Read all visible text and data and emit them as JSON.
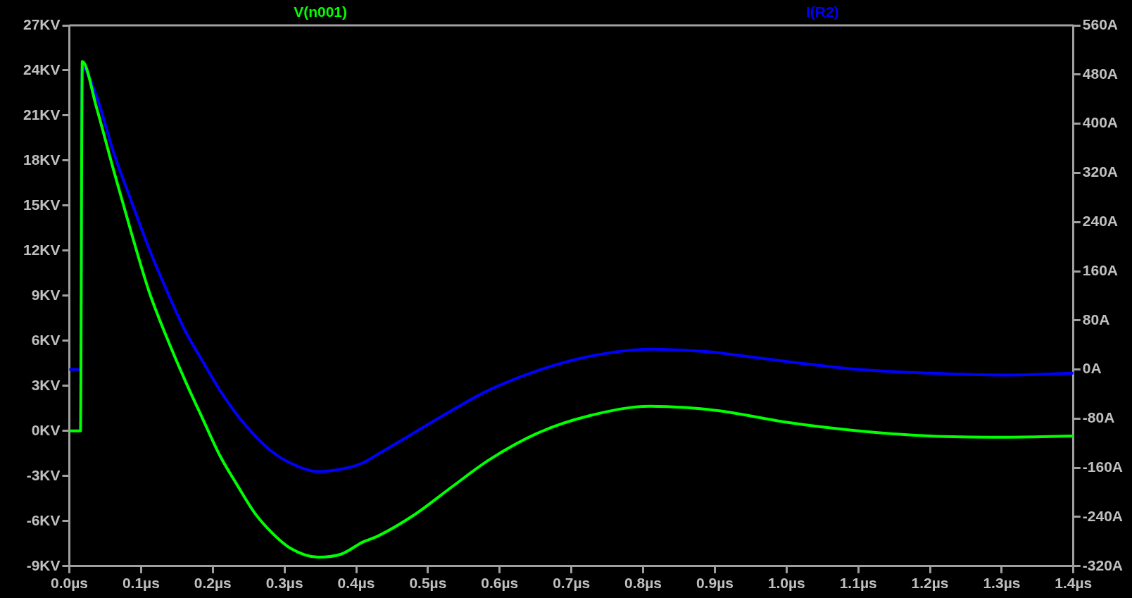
{
  "chart_data": {
    "type": "line",
    "legend": "top",
    "grid": false,
    "marker": "none",
    "line_style": "solid",
    "xlim": [
      0,
      1.4
    ],
    "xticks": [
      {
        "value": 0,
        "label": "0.0µs"
      },
      {
        "value": 0.1,
        "label": "0.1µs"
      },
      {
        "value": 0.2,
        "label": "0.2µs"
      },
      {
        "value": 0.3,
        "label": "0.3µs"
      },
      {
        "value": 0.4,
        "label": "0.4µs"
      },
      {
        "value": 0.5,
        "label": "0.5µs"
      },
      {
        "value": 0.6,
        "label": "0.6µs"
      },
      {
        "value": 0.7,
        "label": "0.7µs"
      },
      {
        "value": 0.8,
        "label": "0.8µs"
      },
      {
        "value": 0.9,
        "label": "0.9µs"
      },
      {
        "value": 1.0,
        "label": "1.0µs"
      },
      {
        "value": 1.1,
        "label": "1.1µs"
      },
      {
        "value": 1.2,
        "label": "1.2µs"
      },
      {
        "value": 1.3,
        "label": "1.3µs"
      },
      {
        "value": 1.4,
        "label": "1.4µs"
      }
    ],
    "ylim": [
      -9,
      27
    ],
    "yticks": [
      {
        "value": -9,
        "label": "-9KV"
      },
      {
        "value": -6,
        "label": "-6KV"
      },
      {
        "value": -3,
        "label": "-3KV"
      },
      {
        "value": 0,
        "label": "0KV"
      },
      {
        "value": 3,
        "label": "3KV"
      },
      {
        "value": 6,
        "label": "6KV"
      },
      {
        "value": 9,
        "label": "9KV"
      },
      {
        "value": 12,
        "label": "12KV"
      },
      {
        "value": 15,
        "label": "15KV"
      },
      {
        "value": 18,
        "label": "18KV"
      },
      {
        "value": 21,
        "label": "21KV"
      },
      {
        "value": 24,
        "label": "24KV"
      },
      {
        "value": 27,
        "label": "27KV"
      }
    ],
    "y2lim": [
      -320,
      560
    ],
    "y2ticks": [
      {
        "value": -320,
        "label": "-320A"
      },
      {
        "value": -240,
        "label": "-240A"
      },
      {
        "value": -160,
        "label": "-160A"
      },
      {
        "value": -80,
        "label": "-80A"
      },
      {
        "value": 0,
        "label": "0A"
      },
      {
        "value": 80,
        "label": "80A"
      },
      {
        "value": 160,
        "label": "160A"
      },
      {
        "value": 240,
        "label": "240A"
      },
      {
        "value": 320,
        "label": "320A"
      },
      {
        "value": 400,
        "label": "400A"
      },
      {
        "value": 480,
        "label": "480A"
      },
      {
        "value": 560,
        "label": "560A"
      }
    ],
    "series": [
      {
        "name": "V(n001)",
        "color": "#00ff00",
        "x": [
          0,
          0.0155,
          0.018,
          0.038,
          0.062,
          0.087,
          0.111,
          0.136,
          0.161,
          0.186,
          0.21,
          0.234,
          0.259,
          0.283,
          0.308,
          0.347,
          0.379,
          0.409,
          0.43,
          0.482,
          0.534,
          0.586,
          0.655,
          0.724,
          0.81,
          0.862,
          0.9,
          0.92,
          1.0,
          1.1,
          1.2,
          1.3,
          1.4
        ],
        "values": [
          0,
          0,
          24.6,
          21.5,
          17.3,
          13.1,
          9.3,
          6.2,
          3.4,
          0.8,
          -1.65,
          -3.6,
          -5.5,
          -6.8,
          -7.8,
          -8.4,
          -8.2,
          -7.4,
          -7.0,
          -5.55,
          -3.7,
          -1.9,
          -0.1,
          1.0,
          1.65,
          1.55,
          1.38,
          1.25,
          0.58,
          0.01,
          -0.34,
          -0.42,
          -0.34
        ]
      },
      {
        "name": "I(R2)",
        "color": "#0000ff",
        "axis": "y2",
        "x": [
          0,
          0.0155,
          0.018,
          0.038,
          0.062,
          0.087,
          0.111,
          0.136,
          0.161,
          0.186,
          0.21,
          0.234,
          0.259,
          0.283,
          0.308,
          0.347,
          0.379,
          0.409,
          0.43,
          0.482,
          0.534,
          0.586,
          0.655,
          0.724,
          0.81,
          0.862,
          0.9,
          0.92,
          1.0,
          1.1,
          1.2,
          1.3,
          1.4
        ],
        "values": [
          0,
          0,
          491,
          444,
          352,
          272,
          197,
          128,
          64,
          13,
          -34,
          -74,
          -108,
          -134,
          -152,
          -166,
          -162,
          -152,
          -138,
          -102,
          -66,
          -33,
          -1,
          21,
          33,
          31,
          28,
          25,
          13,
          0,
          -6,
          -9,
          -6
        ]
      }
    ]
  }
}
